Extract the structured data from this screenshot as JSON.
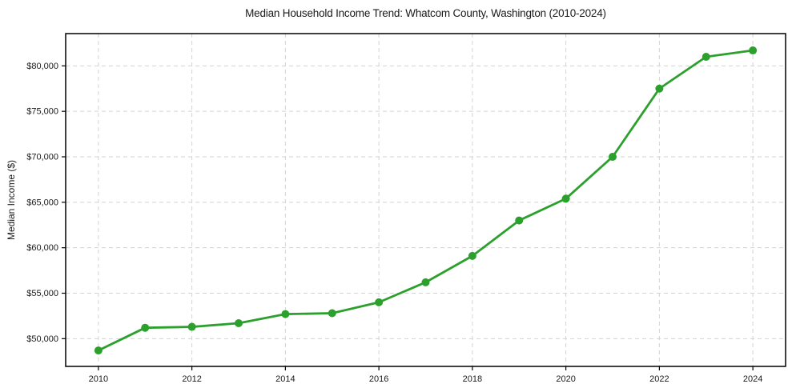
{
  "chart_data": {
    "type": "line",
    "title": "Median Household Income Trend: Whatcom County, Washington (2010-2024)",
    "xlabel": "",
    "ylabel": "Median Income ($)",
    "x": [
      2010,
      2011,
      2012,
      2013,
      2014,
      2015,
      2016,
      2017,
      2018,
      2019,
      2020,
      2021,
      2022,
      2023,
      2024
    ],
    "series": [
      {
        "name": "Median Household Income",
        "values": [
          48700,
          51200,
          51300,
          51700,
          52700,
          52800,
          54000,
          56200,
          59100,
          63000,
          65400,
          70000,
          77500,
          81000,
          81700
        ]
      }
    ],
    "x_ticks": [
      {
        "value": 2010,
        "label": "2010"
      },
      {
        "value": 2012,
        "label": "2012"
      },
      {
        "value": 2014,
        "label": "2014"
      },
      {
        "value": 2016,
        "label": "2016"
      },
      {
        "value": 2018,
        "label": "2018"
      },
      {
        "value": 2020,
        "label": "2020"
      },
      {
        "value": 2022,
        "label": "2022"
      },
      {
        "value": 2024,
        "label": "2024"
      }
    ],
    "y_ticks": [
      {
        "value": 50000,
        "label": "$50,000"
      },
      {
        "value": 55000,
        "label": "$55,000"
      },
      {
        "value": 60000,
        "label": "$60,000"
      },
      {
        "value": 65000,
        "label": "$65,000"
      },
      {
        "value": 70000,
        "label": "$70,000"
      },
      {
        "value": 75000,
        "label": "$75,000"
      },
      {
        "value": 80000,
        "label": "$80,000"
      }
    ],
    "xlim": [
      2009.3,
      2024.7
    ],
    "ylim": [
      46950,
      83550
    ],
    "grid": true,
    "grid_style": "dashed",
    "legend": "none",
    "line_color": "#2ca02c",
    "marker": "circle",
    "marker_radius": 5,
    "line_width": 2.8,
    "grid_color": "#d3d3d3",
    "axis_color": "#000000",
    "text_color": "#1a1a1a",
    "background": "#ffffff"
  }
}
